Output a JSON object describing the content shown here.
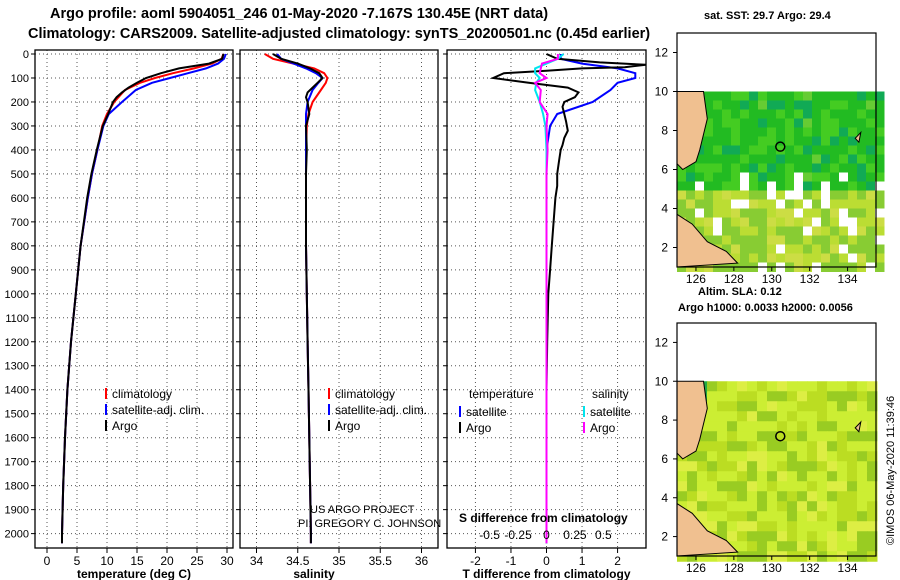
{
  "title": {
    "line1": "Argo profile: aoml 5904051_246 01-May-2020 -7.167S 130.45E (NRT data)",
    "line2": "Climatology: CARS2009. Satellite-adjusted climatology: synTS_20200501.nc (0.45d earlier)"
  },
  "map_labels": {
    "sst": "sat. SST: 29.7 Argo: 29.4",
    "sla": "Altim. SLA: 0.12",
    "argo_h": "Argo h1000: 0.0033 h2000: 0.0056"
  },
  "credits": {
    "project": "US ARGO PROJECT",
    "pi": "PI: GREGORY C. JOHNSON",
    "imos": "©IMOS 06-May-2020 11:39:46"
  },
  "colors": {
    "climatology": "#ff0000",
    "satellite": "#0000ff",
    "argo": "#000000",
    "sal_satellite": "#00e5ee",
    "sal_argo": "#ff00ff",
    "land": "#f0c090",
    "no_data": "#ffffff"
  },
  "chart_data": [
    {
      "type": "line",
      "panel": "temperature",
      "xlabel": "temperature (deg C)",
      "ylabel": "depth",
      "xlim": [
        -2,
        31
      ],
      "ylim": [
        2060,
        0
      ],
      "xticks": [
        0,
        5,
        10,
        15,
        20,
        25,
        30
      ],
      "yticks": [
        0,
        100,
        200,
        300,
        400,
        500,
        600,
        700,
        800,
        900,
        1000,
        1100,
        1200,
        1300,
        1400,
        1500,
        1600,
        1700,
        1800,
        1900,
        2000
      ],
      "legend": [
        "climatology",
        "satellite-adj. clim.",
        "Argo"
      ],
      "series": [
        {
          "name": "climatology",
          "depth": [
            0,
            20,
            40,
            60,
            80,
            100,
            120,
            150,
            200,
            250,
            300,
            400,
            500,
            600,
            800,
            1000,
            1200,
            1400,
            1600,
            1800,
            2000,
            2040
          ],
          "values": [
            29.4,
            29.1,
            27.5,
            24.5,
            21.0,
            18.0,
            15.5,
            13.0,
            11.2,
            10.0,
            9.2,
            8.4,
            7.5,
            6.8,
            5.6,
            4.8,
            4.0,
            3.4,
            3.0,
            2.7,
            2.5,
            2.5
          ]
        },
        {
          "name": "satellite-adj. clim.",
          "depth": [
            0,
            20,
            40,
            60,
            80,
            100,
            120,
            150,
            200,
            250,
            300,
            400,
            500,
            600,
            800,
            1000,
            1200,
            1400,
            1600,
            1800,
            2000,
            2040
          ],
          "values": [
            29.8,
            29.5,
            28.5,
            26.5,
            23.5,
            20.5,
            17.5,
            14.8,
            12.5,
            10.3,
            9.4,
            8.4,
            7.5,
            6.8,
            5.6,
            4.8,
            4.0,
            3.4,
            3.0,
            2.7,
            2.5,
            2.5
          ]
        },
        {
          "name": "Argo",
          "depth": [
            0,
            20,
            40,
            60,
            80,
            100,
            120,
            140,
            160,
            180,
            200,
            250,
            300,
            400,
            500,
            600,
            800,
            1000,
            1200,
            1400,
            1600,
            1800,
            2000,
            2040
          ],
          "values": [
            29.4,
            29.2,
            27.0,
            22.0,
            19.0,
            16.5,
            15.0,
            13.6,
            12.5,
            11.6,
            11.0,
            10.2,
            9.3,
            8.3,
            7.4,
            6.7,
            5.6,
            4.8,
            4.0,
            3.4,
            3.0,
            2.7,
            2.5,
            2.5
          ]
        }
      ]
    },
    {
      "type": "line",
      "panel": "salinity",
      "xlabel": "salinity",
      "xlim": [
        33.8,
        36.2
      ],
      "ylim": [
        2060,
        0
      ],
      "xticks": [
        34,
        34.5,
        35,
        35.5,
        36
      ],
      "xticklabels": [
        "34",
        "34.5",
        "35",
        "35.5",
        "36"
      ],
      "legend": [
        "climatology",
        "satellite-adj. clim.",
        "Argo"
      ],
      "series": [
        {
          "name": "climatology",
          "depth": [
            0,
            20,
            40,
            60,
            80,
            100,
            120,
            150,
            200,
            250,
            300,
            400,
            500,
            600,
            800,
            1000,
            1200,
            1400,
            1600,
            1800,
            2000,
            2040
          ],
          "values": [
            34.1,
            34.2,
            34.45,
            34.7,
            34.82,
            34.86,
            34.84,
            34.78,
            34.68,
            34.63,
            34.61,
            34.6,
            34.6,
            34.6,
            34.6,
            34.61,
            34.62,
            34.63,
            34.64,
            34.65,
            34.66,
            34.66
          ]
        },
        {
          "name": "satellite-adj. clim.",
          "depth": [
            0,
            20,
            40,
            60,
            80,
            100,
            120,
            150,
            200,
            250,
            300,
            400,
            500,
            600,
            800,
            1000,
            1200,
            1400,
            1600,
            1800,
            2000,
            2040
          ],
          "values": [
            34.25,
            34.3,
            34.45,
            34.6,
            34.72,
            34.8,
            34.75,
            34.68,
            34.62,
            34.6,
            34.6,
            34.6,
            34.6,
            34.6,
            34.6,
            34.61,
            34.62,
            34.63,
            34.64,
            34.65,
            34.66,
            34.66
          ]
        },
        {
          "name": "Argo",
          "depth": [
            0,
            20,
            40,
            60,
            80,
            100,
            120,
            140,
            160,
            180,
            200,
            250,
            300,
            400,
            500,
            600,
            800,
            1000,
            1200,
            1400,
            1600,
            1800,
            2000,
            2040
          ],
          "values": [
            34.2,
            34.3,
            34.5,
            34.65,
            34.76,
            34.8,
            34.74,
            34.68,
            34.62,
            34.6,
            34.62,
            34.64,
            34.6,
            34.61,
            34.6,
            34.6,
            34.6,
            34.61,
            34.62,
            34.63,
            34.64,
            34.65,
            34.66,
            34.66
          ]
        }
      ]
    },
    {
      "type": "line",
      "panel": "difference",
      "xlabel": "T difference from climatology",
      "xlim": [
        -2.8,
        2.8
      ],
      "ylim": [
        2060,
        0
      ],
      "xticks": [
        -2,
        -1,
        0,
        1,
        2
      ],
      "xticklabels": [
        "-2",
        "-1",
        "0",
        "1",
        "2"
      ],
      "second_axis": {
        "label": "S difference from climatology",
        "ticks": [
          -0.5,
          -0.25,
          0,
          0.25,
          0.5
        ],
        "ticklabels": [
          "-0.5",
          "-0.25",
          "0",
          "0.25",
          "0.5"
        ]
      },
      "legend": {
        "temperature_heading": "temperature",
        "salinity_heading": "salinity",
        "entries": [
          "satellite",
          "Argo",
          "satellite",
          "Argo"
        ]
      },
      "series": [
        {
          "name": "temperature satellite",
          "depth": [
            0,
            20,
            40,
            60,
            80,
            100,
            120,
            150,
            200,
            250,
            300,
            400,
            500,
            600,
            800,
            1000,
            1400,
            2000,
            2040
          ],
          "values": [
            0.4,
            0.4,
            1.0,
            2.0,
            2.5,
            2.5,
            2.0,
            1.8,
            1.3,
            0.3,
            0.1,
            0.0,
            0.0,
            0.0,
            0.0,
            0.0,
            0.0,
            0.0,
            0.0
          ]
        },
        {
          "name": "temperature Argo",
          "depth": [
            0,
            20,
            35,
            45,
            55,
            60,
            70,
            80,
            100,
            120,
            140,
            160,
            180,
            200,
            220,
            250,
            280,
            320,
            350,
            380,
            400,
            450,
            500,
            550,
            600,
            700,
            800,
            900,
            1000,
            1200,
            1400,
            1600,
            1800,
            2000,
            2040
          ],
          "values": [
            0.0,
            0.3,
            1.5,
            2.8,
            2.2,
            1.0,
            0.0,
            -1.2,
            -1.5,
            -0.5,
            0.6,
            0.9,
            0.8,
            0.5,
            0.45,
            0.5,
            0.55,
            0.6,
            0.5,
            0.45,
            0.4,
            0.35,
            0.3,
            0.3,
            0.25,
            0.2,
            0.15,
            0.1,
            0.05,
            0.02,
            0.0,
            0.0,
            0.0,
            0.0,
            0.0
          ]
        },
        {
          "name": "salinity satellite",
          "depth": [
            0,
            20,
            40,
            60,
            80,
            100,
            120,
            150,
            200,
            250,
            300,
            400,
            500,
            800,
            1000,
            1400,
            2000,
            2040
          ],
          "values": [
            0.15,
            0.1,
            0.0,
            -0.1,
            -0.1,
            -0.06,
            -0.09,
            -0.1,
            -0.06,
            -0.03,
            -0.01,
            0.0,
            0.0,
            0.0,
            0.0,
            0.0,
            0.0,
            0.0
          ]
        },
        {
          "name": "salinity Argo",
          "depth": [
            0,
            20,
            40,
            60,
            80,
            100,
            120,
            150,
            200,
            250,
            300,
            400,
            500,
            800,
            1000,
            1400,
            2000,
            2040
          ],
          "values": [
            0.1,
            0.1,
            -0.04,
            -0.05,
            -0.06,
            0.0,
            -0.1,
            -0.05,
            -0.06,
            0.01,
            0.0,
            0.01,
            0.0,
            0.0,
            0.0,
            0.0,
            0.0,
            0.0
          ]
        }
      ]
    },
    {
      "type": "heatmap",
      "panel": "map-sst",
      "title": "sat. SST: 29.7 Argo: 29.4",
      "xlim": [
        125,
        135.5
      ],
      "ylim": [
        1,
        13
      ],
      "xticks": [
        126,
        128,
        130,
        132,
        134
      ],
      "yticks": [
        2,
        4,
        6,
        8,
        10,
        12
      ],
      "data_top_lat": 10,
      "float_location": {
        "lon": 130.45,
        "lat": 7.17
      }
    },
    {
      "type": "heatmap",
      "panel": "map-sla",
      "title": "Altim. SLA: 0.12",
      "xlim": [
        125,
        135.5
      ],
      "ylim": [
        1,
        13
      ],
      "xticks": [
        126,
        128,
        130,
        132,
        134
      ],
      "yticks": [
        2,
        4,
        6,
        8,
        10,
        12
      ],
      "data_top_lat": 10,
      "float_location": {
        "lon": 130.45,
        "lat": 7.17
      }
    }
  ]
}
